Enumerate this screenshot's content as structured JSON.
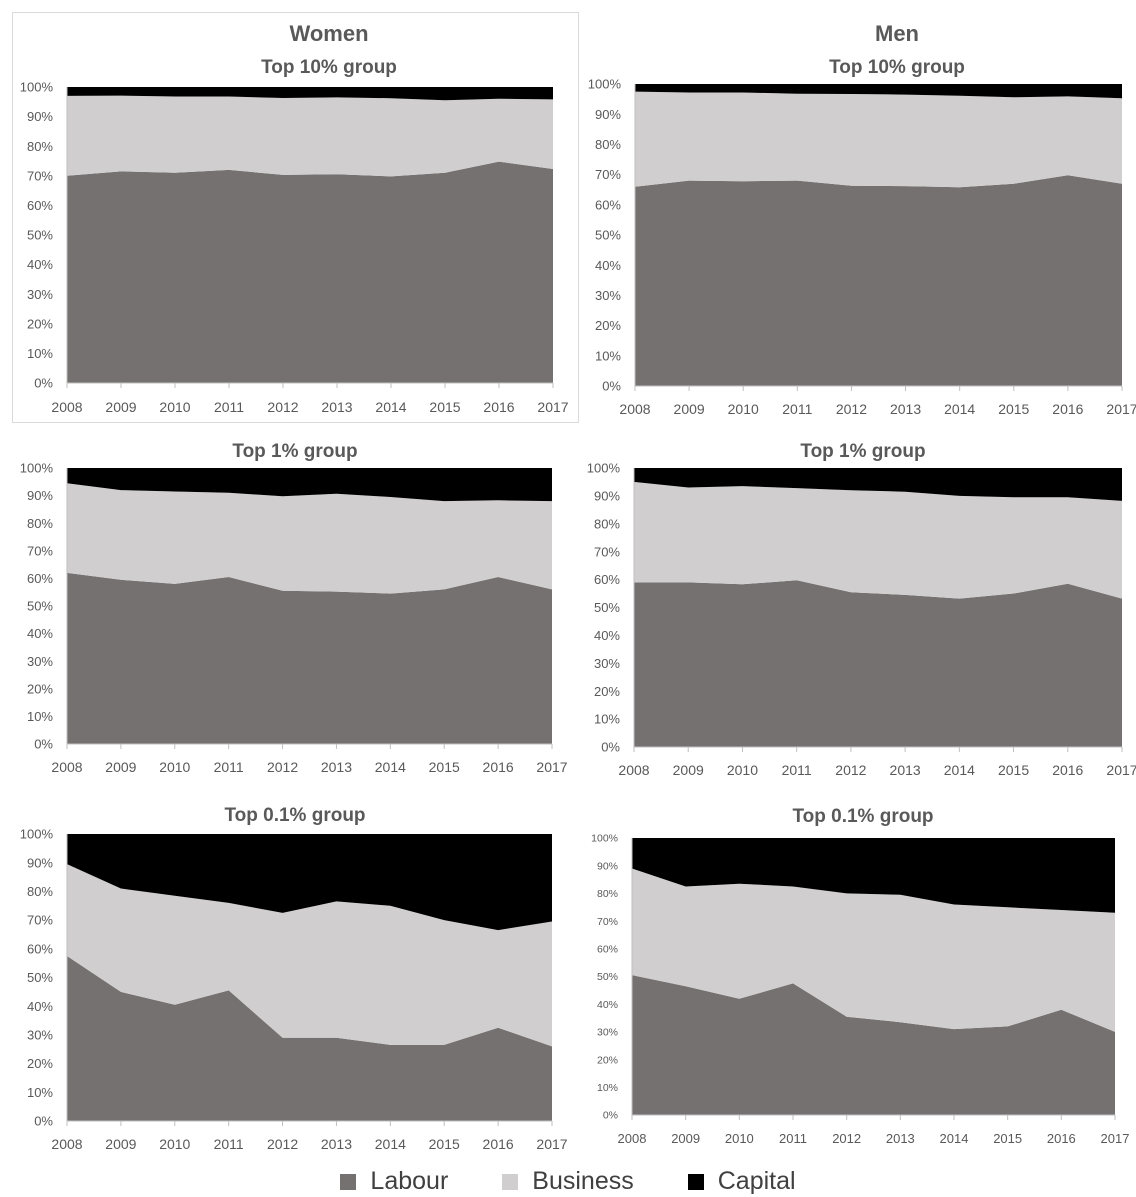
{
  "columns": [
    "Women",
    "Men"
  ],
  "legend": [
    {
      "key": "labour",
      "label": "Labour",
      "color": "#767171"
    },
    {
      "key": "business",
      "label": "Business",
      "color": "#d0cece"
    },
    {
      "key": "capital",
      "label": "Capital",
      "color": "#000000"
    }
  ],
  "chart_data": [
    {
      "type": "area",
      "stacked": true,
      "group": "Women",
      "title": "Top 10% group",
      "x": [
        2008,
        2009,
        2010,
        2011,
        2012,
        2013,
        2014,
        2015,
        2016,
        2017
      ],
      "ylim": [
        0,
        100
      ],
      "yticks": [
        "0%",
        "10%",
        "20%",
        "30%",
        "40%",
        "50%",
        "60%",
        "70%",
        "80%",
        "90%",
        "100%"
      ],
      "series": [
        {
          "name": "Labour",
          "values": [
            70,
            71.5,
            71,
            72,
            70.3,
            70.5,
            69.8,
            71,
            74.8,
            72.3
          ]
        },
        {
          "name": "Business",
          "values": [
            27,
            25.6,
            25.8,
            24.8,
            26,
            26,
            26.4,
            24.5,
            21.2,
            23.5
          ]
        },
        {
          "name": "Capital",
          "values": [
            3,
            2.9,
            3.2,
            3.2,
            3.7,
            3.5,
            3.8,
            4.5,
            4,
            4.2
          ]
        }
      ]
    },
    {
      "type": "area",
      "stacked": true,
      "group": "Men",
      "title": "Top 10% group",
      "x": [
        2008,
        2009,
        2010,
        2011,
        2012,
        2013,
        2014,
        2015,
        2016,
        2017
      ],
      "ylim": [
        0,
        100
      ],
      "yticks": [
        "0%",
        "10%",
        "20%",
        "30%",
        "40%",
        "50%",
        "60%",
        "70%",
        "80%",
        "90%",
        "100%"
      ],
      "series": [
        {
          "name": "Labour",
          "values": [
            66,
            68,
            67.8,
            68,
            66.3,
            66.2,
            65.8,
            67,
            69.8,
            67
          ]
        },
        {
          "name": "Business",
          "values": [
            31.5,
            29.2,
            29.4,
            28.8,
            30.4,
            30.3,
            30.3,
            28.6,
            26.1,
            28.3
          ]
        },
        {
          "name": "Capital",
          "values": [
            2.5,
            2.8,
            2.8,
            3.2,
            3.3,
            3.5,
            3.9,
            4.4,
            4.1,
            4.7
          ]
        }
      ]
    },
    {
      "type": "area",
      "stacked": true,
      "group": "Women",
      "title": "Top 1% group",
      "x": [
        2008,
        2009,
        2010,
        2011,
        2012,
        2013,
        2014,
        2015,
        2016,
        2017
      ],
      "ylim": [
        0,
        100
      ],
      "yticks": [
        "0%",
        "10%",
        "20%",
        "30%",
        "40%",
        "50%",
        "60%",
        "70%",
        "80%",
        "90%",
        "100%"
      ],
      "series": [
        {
          "name": "Labour",
          "values": [
            62,
            59.5,
            58,
            60.5,
            55.5,
            55.2,
            54.5,
            56,
            60.5,
            56
          ]
        },
        {
          "name": "Business",
          "values": [
            32.5,
            32.5,
            33.5,
            30.5,
            34.3,
            35.5,
            35,
            32,
            27.8,
            32
          ]
        },
        {
          "name": "Capital",
          "values": [
            5.5,
            8,
            8.5,
            9,
            10.2,
            9.3,
            10.5,
            12,
            11.7,
            12
          ]
        }
      ]
    },
    {
      "type": "area",
      "stacked": true,
      "group": "Men",
      "title": "Top 1% group",
      "x": [
        2008,
        2009,
        2010,
        2011,
        2012,
        2013,
        2014,
        2015,
        2016,
        2017
      ],
      "ylim": [
        0,
        100
      ],
      "yticks": [
        "0%",
        "10%",
        "20%",
        "30%",
        "40%",
        "50%",
        "60%",
        "70%",
        "80%",
        "90%",
        "100%"
      ],
      "series": [
        {
          "name": "Labour",
          "values": [
            59,
            59,
            58.3,
            59.8,
            55.5,
            54.5,
            53.2,
            55,
            58.5,
            53.2
          ]
        },
        {
          "name": "Business",
          "values": [
            36,
            34,
            35.2,
            33,
            36.5,
            37,
            36.8,
            34.5,
            31,
            35
          ]
        },
        {
          "name": "Capital",
          "values": [
            5,
            7,
            6.5,
            7.2,
            8,
            8.5,
            10,
            10.5,
            10.5,
            11.8
          ]
        }
      ]
    },
    {
      "type": "area",
      "stacked": true,
      "group": "Women",
      "title": "Top 0.1% group",
      "x": [
        2008,
        2009,
        2010,
        2011,
        2012,
        2013,
        2014,
        2015,
        2016,
        2017
      ],
      "ylim": [
        0,
        100
      ],
      "yticks": [
        "0%",
        "10%",
        "20%",
        "30%",
        "40%",
        "50%",
        "60%",
        "70%",
        "80%",
        "90%",
        "100%"
      ],
      "series": [
        {
          "name": "Labour",
          "values": [
            57.5,
            45,
            40.5,
            45.5,
            29,
            29,
            26.5,
            26.5,
            32.5,
            26
          ]
        },
        {
          "name": "Business",
          "values": [
            32,
            36,
            38,
            30.5,
            43.5,
            47.5,
            48.5,
            43.5,
            34,
            43.5
          ]
        },
        {
          "name": "Capital",
          "values": [
            10.5,
            19,
            21.5,
            24,
            27.5,
            23.5,
            25,
            30,
            33.5,
            30.5
          ]
        }
      ]
    },
    {
      "type": "area",
      "stacked": true,
      "group": "Men",
      "title": "Top 0.1% group",
      "x": [
        2008,
        2009,
        2010,
        2011,
        2012,
        2013,
        2014,
        2015,
        2016,
        2017
      ],
      "ylim": [
        0,
        100
      ],
      "yticks": [
        "0%",
        "10%",
        "20%",
        "30%",
        "40%",
        "50%",
        "60%",
        "70%",
        "80%",
        "90%",
        "100%"
      ],
      "series": [
        {
          "name": "Labour",
          "values": [
            50.5,
            46.5,
            42,
            47.5,
            35.5,
            33.5,
            31,
            32,
            38,
            30
          ]
        },
        {
          "name": "Business",
          "values": [
            38.5,
            36,
            41.5,
            35,
            44.5,
            46,
            45,
            43,
            36,
            43
          ]
        },
        {
          "name": "Capital",
          "values": [
            11,
            17.5,
            16.5,
            17.5,
            20,
            20.5,
            24,
            25,
            26,
            27
          ]
        }
      ]
    }
  ]
}
